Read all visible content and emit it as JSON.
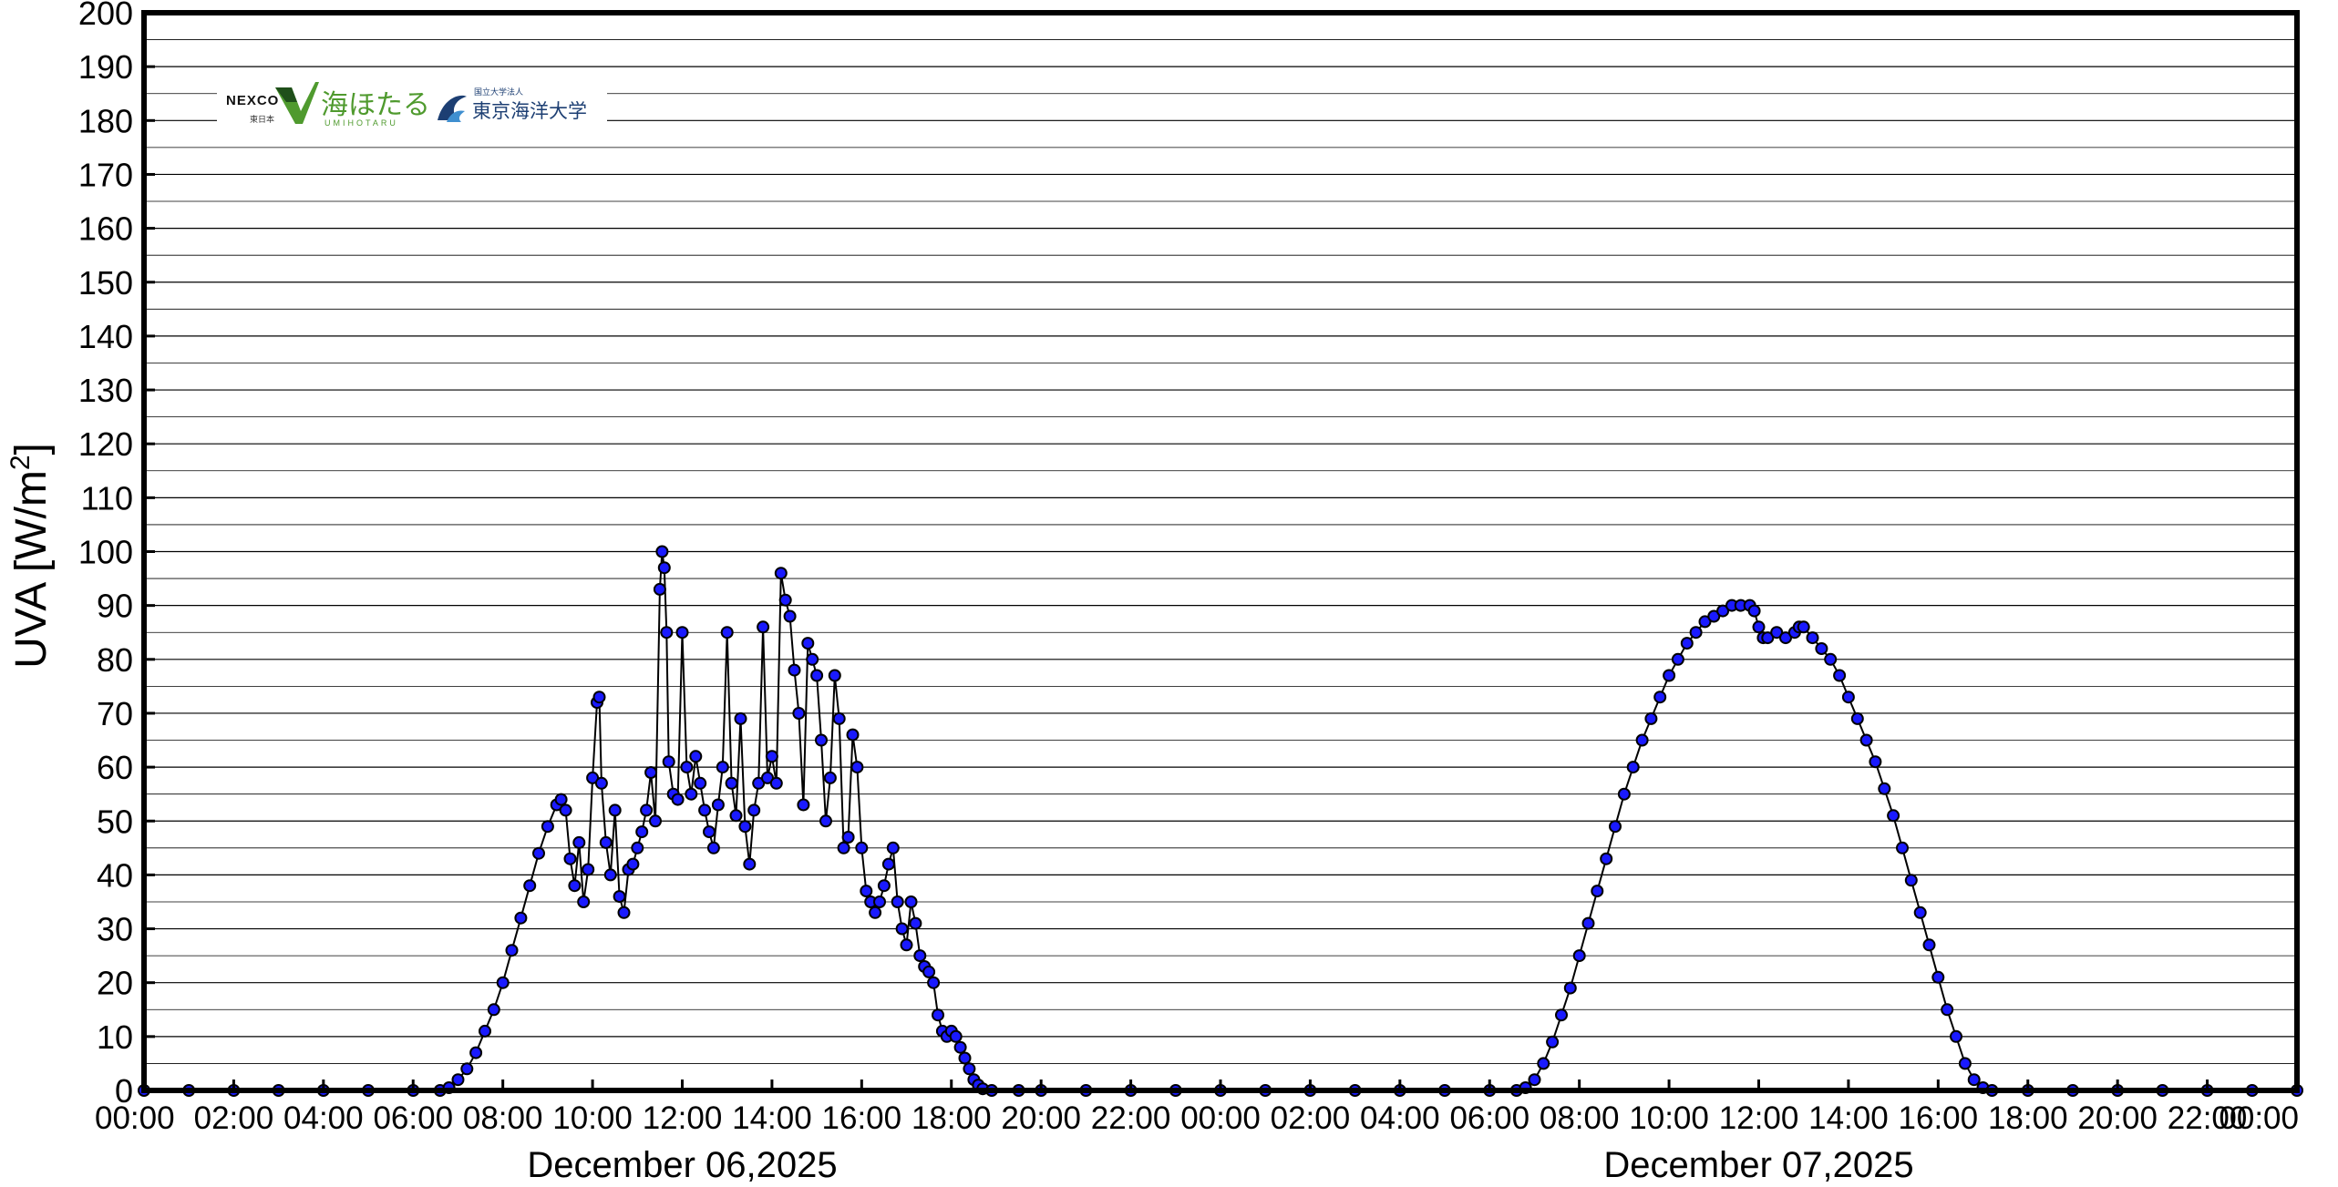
{
  "chart_data": {
    "type": "scatter",
    "title": "",
    "ylabel": "UVA [W/m",
    "ylabel_superscript": "2",
    "ylabel_close": "]",
    "ylim": [
      0,
      200
    ],
    "y_major_step": 10,
    "y_minor_step": 5,
    "y_ticks": [
      "0",
      "10",
      "20",
      "30",
      "40",
      "50",
      "60",
      "70",
      "80",
      "90",
      "100",
      "110",
      "120",
      "130",
      "140",
      "150",
      "160",
      "170",
      "180",
      "190",
      "200"
    ],
    "xlim_hours": [
      0,
      48
    ],
    "x_tick_step_hours": 2,
    "x_ticks": [
      "00:00",
      "02:00",
      "04:00",
      "06:00",
      "08:00",
      "10:00",
      "12:00",
      "14:00",
      "16:00",
      "18:00",
      "20:00",
      "22:00",
      "00:00",
      "02:00",
      "04:00",
      "06:00",
      "08:00",
      "10:00",
      "12:00",
      "14:00",
      "16:00",
      "18:00",
      "20:00",
      "22:00",
      "00:00"
    ],
    "date_labels": [
      "December 06,2025",
      "December 07,2025"
    ],
    "grid": "horizontal",
    "series": [
      {
        "marker_color": "#1a1aff",
        "line_color": "#000000",
        "points": [
          [
            0.0,
            0
          ],
          [
            1.0,
            0
          ],
          [
            2.0,
            0
          ],
          [
            3.0,
            0
          ],
          [
            4.0,
            0
          ],
          [
            5.0,
            0
          ],
          [
            6.0,
            0
          ],
          [
            6.6,
            0
          ],
          [
            6.8,
            0.5
          ],
          [
            7.0,
            2
          ],
          [
            7.2,
            4
          ],
          [
            7.4,
            7
          ],
          [
            7.6,
            11
          ],
          [
            7.8,
            15
          ],
          [
            8.0,
            20
          ],
          [
            8.2,
            26
          ],
          [
            8.4,
            32
          ],
          [
            8.6,
            38
          ],
          [
            8.8,
            44
          ],
          [
            9.0,
            49
          ],
          [
            9.2,
            53
          ],
          [
            9.3,
            54
          ],
          [
            9.4,
            52
          ],
          [
            9.5,
            43
          ],
          [
            9.6,
            38
          ],
          [
            9.7,
            46
          ],
          [
            9.8,
            35
          ],
          [
            9.9,
            41
          ],
          [
            10.0,
            58
          ],
          [
            10.1,
            72
          ],
          [
            10.15,
            73
          ],
          [
            10.2,
            57
          ],
          [
            10.3,
            46
          ],
          [
            10.4,
            40
          ],
          [
            10.5,
            52
          ],
          [
            10.6,
            36
          ],
          [
            10.7,
            33
          ],
          [
            10.8,
            41
          ],
          [
            10.9,
            42
          ],
          [
            11.0,
            45
          ],
          [
            11.1,
            48
          ],
          [
            11.2,
            52
          ],
          [
            11.3,
            59
          ],
          [
            11.4,
            50
          ],
          [
            11.5,
            93
          ],
          [
            11.55,
            100
          ],
          [
            11.6,
            97
          ],
          [
            11.65,
            85
          ],
          [
            11.7,
            61
          ],
          [
            11.8,
            55
          ],
          [
            11.9,
            54
          ],
          [
            12.0,
            85
          ],
          [
            12.1,
            60
          ],
          [
            12.2,
            55
          ],
          [
            12.3,
            62
          ],
          [
            12.4,
            57
          ],
          [
            12.5,
            52
          ],
          [
            12.6,
            48
          ],
          [
            12.7,
            45
          ],
          [
            12.8,
            53
          ],
          [
            12.9,
            60
          ],
          [
            13.0,
            85
          ],
          [
            13.1,
            57
          ],
          [
            13.2,
            51
          ],
          [
            13.3,
            69
          ],
          [
            13.4,
            49
          ],
          [
            13.5,
            42
          ],
          [
            13.6,
            52
          ],
          [
            13.7,
            57
          ],
          [
            13.8,
            86
          ],
          [
            13.9,
            58
          ],
          [
            14.0,
            62
          ],
          [
            14.1,
            57
          ],
          [
            14.2,
            96
          ],
          [
            14.3,
            91
          ],
          [
            14.4,
            88
          ],
          [
            14.5,
            78
          ],
          [
            14.6,
            70
          ],
          [
            14.7,
            53
          ],
          [
            14.8,
            83
          ],
          [
            14.9,
            80
          ],
          [
            15.0,
            77
          ],
          [
            15.1,
            65
          ],
          [
            15.2,
            50
          ],
          [
            15.3,
            58
          ],
          [
            15.4,
            77
          ],
          [
            15.5,
            69
          ],
          [
            15.6,
            45
          ],
          [
            15.7,
            47
          ],
          [
            15.8,
            66
          ],
          [
            15.9,
            60
          ],
          [
            16.0,
            45
          ],
          [
            16.1,
            37
          ],
          [
            16.2,
            35
          ],
          [
            16.3,
            33
          ],
          [
            16.4,
            35
          ],
          [
            16.5,
            38
          ],
          [
            16.6,
            42
          ],
          [
            16.7,
            45
          ],
          [
            16.8,
            35
          ],
          [
            16.9,
            30
          ],
          [
            17.0,
            27
          ],
          [
            17.1,
            35
          ],
          [
            17.2,
            31
          ],
          [
            17.3,
            25
          ],
          [
            17.4,
            23
          ],
          [
            17.5,
            22
          ],
          [
            17.6,
            20
          ],
          [
            17.7,
            14
          ],
          [
            17.8,
            11
          ],
          [
            17.9,
            10
          ],
          [
            18.0,
            11
          ],
          [
            18.1,
            10
          ],
          [
            18.2,
            8
          ],
          [
            18.3,
            6
          ],
          [
            18.4,
            4
          ],
          [
            18.5,
            2
          ],
          [
            18.6,
            1
          ],
          [
            18.7,
            0.3
          ],
          [
            18.9,
            0
          ],
          [
            19.5,
            0
          ],
          [
            20.0,
            0
          ],
          [
            21.0,
            0
          ],
          [
            22.0,
            0
          ],
          [
            23.0,
            0
          ],
          [
            24.0,
            0
          ],
          [
            25.0,
            0
          ],
          [
            26.0,
            0
          ],
          [
            27.0,
            0
          ],
          [
            28.0,
            0
          ],
          [
            29.0,
            0
          ],
          [
            30.0,
            0
          ],
          [
            30.6,
            0
          ],
          [
            30.8,
            0.5
          ],
          [
            31.0,
            2
          ],
          [
            31.2,
            5
          ],
          [
            31.4,
            9
          ],
          [
            31.6,
            14
          ],
          [
            31.8,
            19
          ],
          [
            32.0,
            25
          ],
          [
            32.2,
            31
          ],
          [
            32.4,
            37
          ],
          [
            32.6,
            43
          ],
          [
            32.8,
            49
          ],
          [
            33.0,
            55
          ],
          [
            33.2,
            60
          ],
          [
            33.4,
            65
          ],
          [
            33.6,
            69
          ],
          [
            33.8,
            73
          ],
          [
            34.0,
            77
          ],
          [
            34.2,
            80
          ],
          [
            34.4,
            83
          ],
          [
            34.6,
            85
          ],
          [
            34.8,
            87
          ],
          [
            35.0,
            88
          ],
          [
            35.2,
            89
          ],
          [
            35.4,
            90
          ],
          [
            35.6,
            90
          ],
          [
            35.8,
            90
          ],
          [
            35.9,
            89
          ],
          [
            36.0,
            86
          ],
          [
            36.1,
            84
          ],
          [
            36.2,
            84
          ],
          [
            36.4,
            85
          ],
          [
            36.6,
            84
          ],
          [
            36.8,
            85
          ],
          [
            36.9,
            86
          ],
          [
            37.0,
            86
          ],
          [
            37.2,
            84
          ],
          [
            37.4,
            82
          ],
          [
            37.6,
            80
          ],
          [
            37.8,
            77
          ],
          [
            38.0,
            73
          ],
          [
            38.2,
            69
          ],
          [
            38.4,
            65
          ],
          [
            38.6,
            61
          ],
          [
            38.8,
            56
          ],
          [
            39.0,
            51
          ],
          [
            39.2,
            45
          ],
          [
            39.4,
            39
          ],
          [
            39.6,
            33
          ],
          [
            39.8,
            27
          ],
          [
            40.0,
            21
          ],
          [
            40.2,
            15
          ],
          [
            40.4,
            10
          ],
          [
            40.6,
            5
          ],
          [
            40.8,
            2
          ],
          [
            41.0,
            0.5
          ],
          [
            41.2,
            0
          ],
          [
            42.0,
            0
          ],
          [
            43.0,
            0
          ],
          [
            44.0,
            0
          ],
          [
            45.0,
            0
          ],
          [
            46.0,
            0
          ],
          [
            47.0,
            0
          ],
          [
            48.0,
            0
          ]
        ]
      }
    ]
  },
  "logos": {
    "nexco": "NEXCO",
    "nexco_sub": "東日本",
    "umihotaru": "海ほたる",
    "umihotaru_sub": "UMIHOTARU",
    "university_small": "国立大学法人",
    "university": "東京海洋大学"
  }
}
